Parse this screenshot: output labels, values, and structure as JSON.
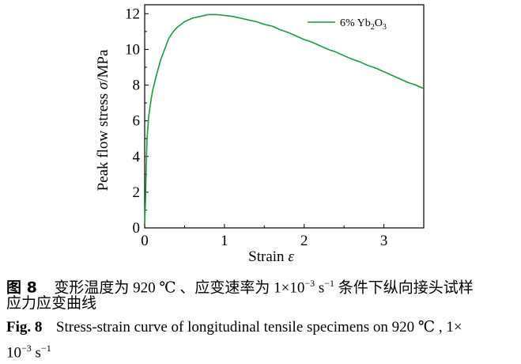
{
  "chart_data": {
    "type": "line",
    "xlabel": "Strain ε",
    "ylabel": "Peak flow stress σ/MPa",
    "xlim": [
      0,
      3.5
    ],
    "ylim": [
      0,
      12.5
    ],
    "xticks": [
      "0",
      "1",
      "2",
      "3"
    ],
    "yticks": [
      "0",
      "2",
      "4",
      "6",
      "8",
      "10",
      "12"
    ],
    "legend_position": "top-right",
    "series": [
      {
        "name": "6% Yb2O3",
        "color": "#1a9a3a",
        "x": [
          0,
          0.01,
          0.02,
          0.03,
          0.05,
          0.08,
          0.1,
          0.15,
          0.2,
          0.25,
          0.3,
          0.35,
          0.4,
          0.5,
          0.6,
          0.7,
          0.8,
          0.9,
          1.0,
          1.1,
          1.2,
          1.3,
          1.4,
          1.5,
          1.6,
          1.7,
          1.8,
          1.9,
          2.0,
          2.1,
          2.2,
          2.3,
          2.4,
          2.5,
          2.6,
          2.7,
          2.8,
          2.9,
          3.0,
          3.1,
          3.2,
          3.3,
          3.4,
          3.5
        ],
        "y": [
          0.2,
          1.5,
          3.5,
          5.0,
          6.2,
          7.2,
          7.7,
          8.6,
          9.4,
          10.0,
          10.6,
          10.95,
          11.2,
          11.55,
          11.75,
          11.85,
          11.95,
          11.95,
          11.9,
          11.85,
          11.75,
          11.65,
          11.55,
          11.4,
          11.3,
          11.1,
          10.95,
          10.75,
          10.55,
          10.4,
          10.2,
          10.0,
          9.85,
          9.65,
          9.45,
          9.3,
          9.1,
          8.95,
          8.75,
          8.55,
          8.35,
          8.15,
          8.0,
          7.8
        ]
      }
    ]
  },
  "caption": {
    "cn_label": "图 8",
    "cn_text": "变形温度为 920 ℃ 、应变速率为 1×10",
    "cn_exp": "−3",
    "cn_unit": " s",
    "cn_unit_exp": "−1",
    "cn_rest": " 条件下纵向接头试样",
    "cn_line2": "应力应变曲线",
    "en_label": "Fig. 8",
    "en_text": "Stress-strain curve of longitudinal tensile specimens on 920 ℃ , 1×",
    "en_line2a": "10",
    "en_exp": "−3",
    "en_unit": " s",
    "en_unit_exp": "−1"
  }
}
